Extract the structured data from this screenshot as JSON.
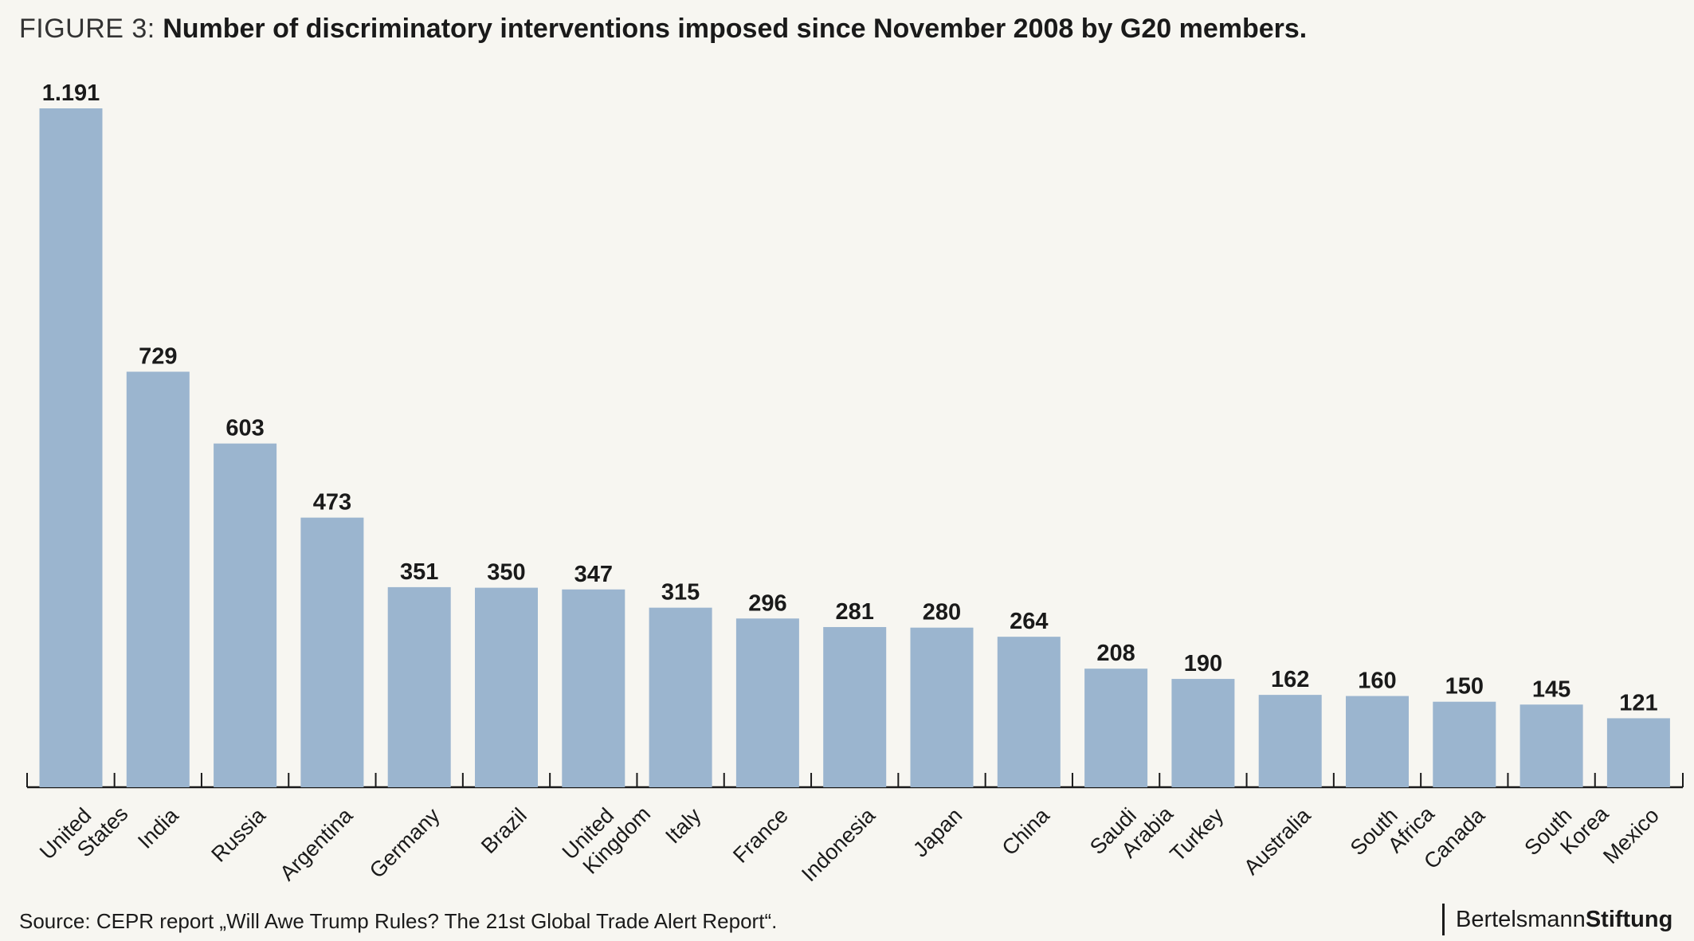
{
  "title": {
    "prefix": "FIGURE 3:",
    "main": "Number of discriminatory interventions imposed since November 2008 by G20 members."
  },
  "chart_data": {
    "type": "bar",
    "title": "Number of discriminatory interventions imposed since November 2008 by G20 members.",
    "xlabel": "",
    "ylabel": "",
    "ylim": [
      0,
      1191
    ],
    "grid": false,
    "categories": [
      [
        "United",
        "States"
      ],
      [
        "India"
      ],
      [
        "Russia"
      ],
      [
        "Argentina"
      ],
      [
        "Germany"
      ],
      [
        "Brazil"
      ],
      [
        "United",
        "Kingdom"
      ],
      [
        "Italy"
      ],
      [
        "France"
      ],
      [
        "Indonesia"
      ],
      [
        "Japan"
      ],
      [
        "China"
      ],
      [
        "Saudi",
        "Arabia"
      ],
      [
        "Turkey"
      ],
      [
        "Australia"
      ],
      [
        "South",
        "Africa"
      ],
      [
        "Canada"
      ],
      [
        "South",
        "Korea"
      ],
      [
        "Mexico"
      ]
    ],
    "values": [
      1191,
      729,
      603,
      473,
      351,
      350,
      347,
      315,
      296,
      281,
      280,
      264,
      208,
      190,
      162,
      160,
      150,
      145,
      121
    ],
    "value_labels": [
      "1.191",
      "729",
      "603",
      "473",
      "351",
      "350",
      "347",
      "315",
      "296",
      "281",
      "280",
      "264",
      "208",
      "190",
      "162",
      "160",
      "150",
      "145",
      "121"
    ],
    "bar_color": "#9bb5cf",
    "axis_color": "#1a1a1a"
  },
  "footer": {
    "source": "Source: CEPR report „Will Awe Trump Rules? The 21st Global Trade Alert Report“.",
    "brand_regular": "Bertelsmann",
    "brand_bold": "Stiftung"
  }
}
